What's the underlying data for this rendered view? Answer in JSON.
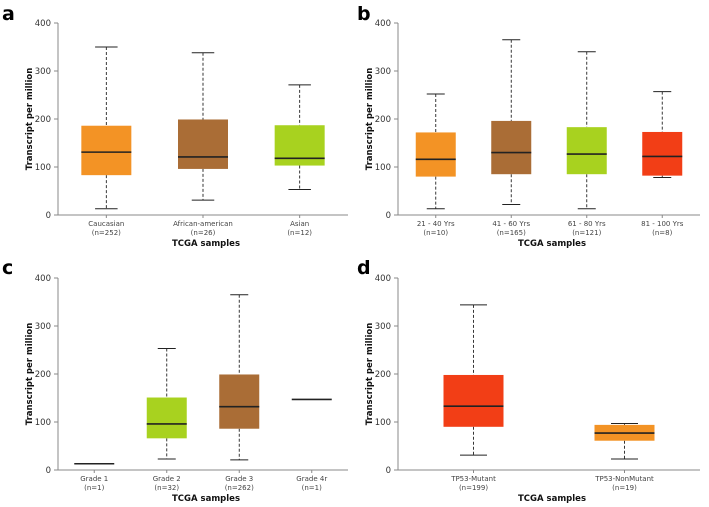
{
  "chart_data": [
    {
      "type": "box",
      "panel": "a",
      "xlabel": "TCGA samples",
      "ylabel": "Transcript per million",
      "ylim": [
        0,
        400
      ],
      "yticks": [
        0,
        100,
        200,
        300,
        400
      ],
      "categories": [
        {
          "name": "Caucasian",
          "n": "(n=252)",
          "min": 13,
          "q1": 83,
          "median": 131,
          "q3": 186,
          "max": 350,
          "color": "#F39325"
        },
        {
          "name": "African-american",
          "n": "(n=26)",
          "min": 31,
          "q1": 96,
          "median": 121,
          "q3": 199,
          "max": 338,
          "color": "#AA6D36"
        },
        {
          "name": "Asian",
          "n": "(n=12)",
          "min": 53,
          "q1": 103,
          "median": 118,
          "q3": 187,
          "max": 271,
          "color": "#A8D21F"
        }
      ]
    },
    {
      "type": "box",
      "panel": "b",
      "xlabel": "TCGA samples",
      "ylabel": "Transcript per million",
      "ylim": [
        0,
        400
      ],
      "yticks": [
        0,
        100,
        200,
        300,
        400
      ],
      "categories": [
        {
          "name": "21 - 40 Yrs",
          "n": "(n=10)",
          "min": 13,
          "q1": 80,
          "median": 116,
          "q3": 172,
          "max": 252,
          "color": "#F39325"
        },
        {
          "name": "41 - 60 Yrs",
          "n": "(n=165)",
          "min": 22,
          "q1": 85,
          "median": 130,
          "q3": 196,
          "max": 365,
          "color": "#AA6D36"
        },
        {
          "name": "61 - 80 Yrs",
          "n": "(n=121)",
          "min": 13,
          "q1": 85,
          "median": 127,
          "q3": 183,
          "max": 340,
          "color": "#A8D21F"
        },
        {
          "name": "81 - 100 Yrs",
          "n": "(n=8)",
          "min": 78,
          "q1": 82,
          "median": 122,
          "q3": 173,
          "max": 257,
          "color": "#F23E16"
        }
      ]
    },
    {
      "type": "box",
      "panel": "c",
      "xlabel": "TCGA samples",
      "ylabel": "Transcript per million",
      "ylim": [
        0,
        400
      ],
      "yticks": [
        0,
        100,
        200,
        300,
        400
      ],
      "categories": [
        {
          "name": "Grade 1",
          "n": "(n=1)",
          "min": 13,
          "q1": 13,
          "median": 13,
          "q3": 13,
          "max": 13,
          "color": "#F39325"
        },
        {
          "name": "Grade 2",
          "n": "(n=32)",
          "min": 23,
          "q1": 66,
          "median": 96,
          "q3": 151,
          "max": 253,
          "color": "#A8D21F"
        },
        {
          "name": "Grade 3",
          "n": "(n=262)",
          "min": 21,
          "q1": 86,
          "median": 132,
          "q3": 199,
          "max": 365,
          "color": "#AA6D36"
        },
        {
          "name": "Grade 4r",
          "n": "(n=1)",
          "min": 147,
          "q1": 147,
          "median": 147,
          "q3": 147,
          "max": 147,
          "color": "#7A2E34"
        }
      ]
    },
    {
      "type": "box",
      "panel": "d",
      "xlabel": "TCGA samples",
      "ylabel": "Transcript per million",
      "ylim": [
        0,
        400
      ],
      "yticks": [
        0,
        100,
        200,
        300,
        400
      ],
      "categories": [
        {
          "name": "TP53-Mutant",
          "n": "(n=199)",
          "min": 31,
          "q1": 90,
          "median": 133,
          "q3": 198,
          "max": 344,
          "color": "#F23E16"
        },
        {
          "name": "TP53-NonMutant",
          "n": "(n=19)",
          "min": 23,
          "q1": 61,
          "median": 77,
          "q3": 94,
          "max": 97,
          "color": "#F39325"
        }
      ]
    }
  ]
}
